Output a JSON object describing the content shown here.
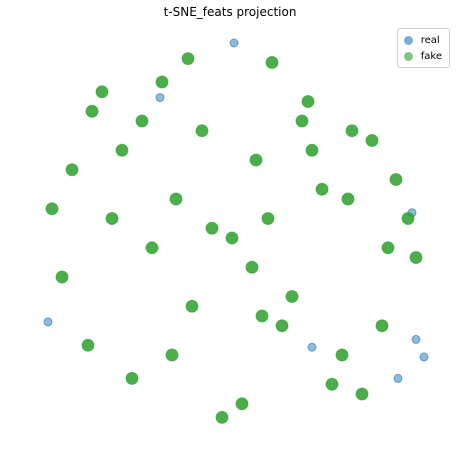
{
  "chart_data": {
    "type": "scatter",
    "title": "t-SNE_feats projection",
    "xlabel": "",
    "ylabel": "",
    "grid": false,
    "axes_visible": false,
    "legend_position": "top-right",
    "series": [
      {
        "name": "real",
        "color": "#1f77b4",
        "alpha": 0.5,
        "x": [
          1,
          92,
          96,
          90,
          -92,
          -36,
          40,
          83
        ],
        "y": [
          100,
          -52,
          -61,
          13,
          -43,
          72,
          -56,
          -72
        ]
      },
      {
        "name": "fake",
        "color": "#2ca02c",
        "alpha": 0.5,
        "x": [
          -10,
          -28,
          18,
          10,
          -40,
          45,
          30,
          -55,
          60,
          55,
          -70,
          75,
          -80,
          82,
          -85,
          88,
          -35,
          38,
          5,
          -5,
          20,
          -22,
          50,
          -50,
          65,
          -65,
          70,
          -72,
          78,
          -90,
          92,
          0,
          12,
          -15,
          25,
          -45,
          40,
          -60,
          58,
          15,
          -20,
          35,
          -30
        ],
        "y": [
          5,
          20,
          10,
          -15,
          -5,
          25,
          -30,
          45,
          55,
          -60,
          65,
          -45,
          35,
          30,
          -20,
          10,
          80,
          70,
          -85,
          -92,
          90,
          92,
          -75,
          -72,
          -80,
          75,
          50,
          -55,
          -5,
          15,
          -10,
          0,
          40,
          55,
          -45,
          60,
          45,
          10,
          20,
          -40,
          -35,
          60,
          -60
        ]
      }
    ]
  }
}
